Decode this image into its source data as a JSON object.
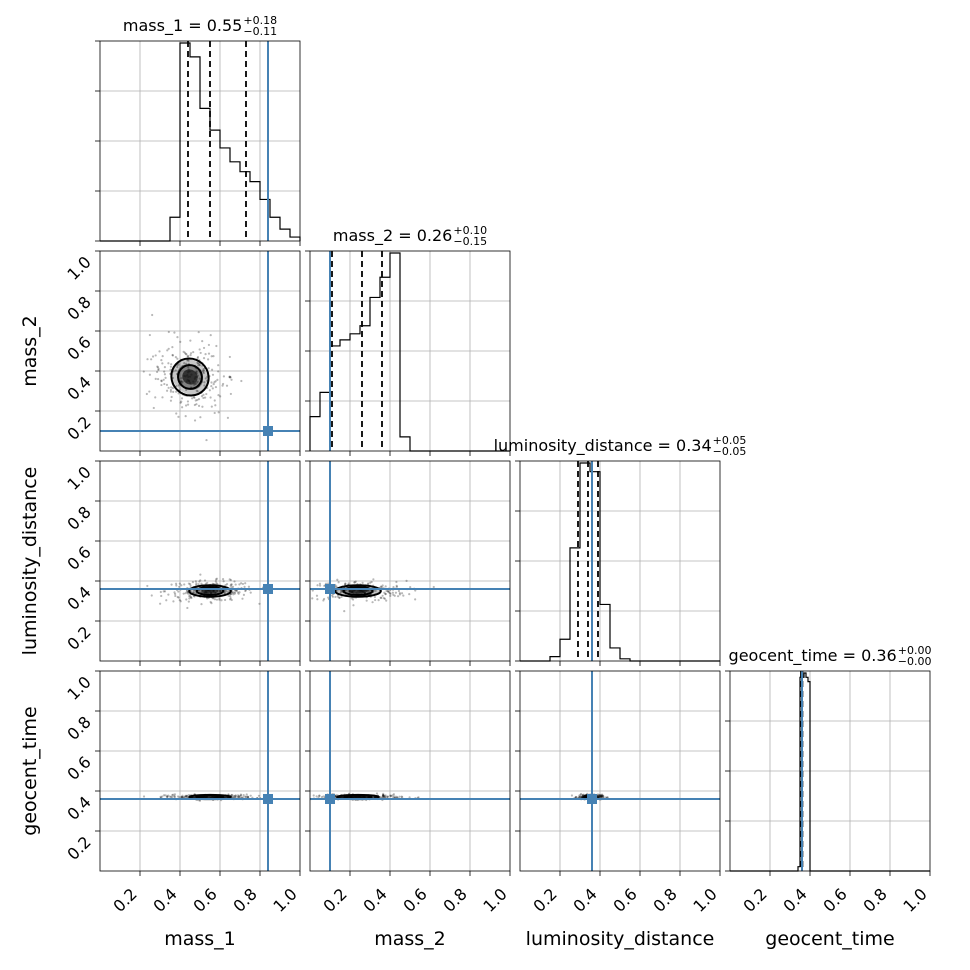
{
  "colors": {
    "truth": "#4682b4",
    "histogram": "#000000",
    "grid": "#b0b0b0"
  },
  "chart_data": {
    "type": "corner",
    "parameters": [
      "mass_1",
      "mass_2",
      "luminosity_distance",
      "geocent_time"
    ],
    "axis_labels": [
      "mass_1",
      "mass_2",
      "luminosity_distance",
      "geocent_time"
    ],
    "ranges": [
      [
        0,
        1
      ],
      [
        0,
        1
      ],
      [
        0,
        1
      ],
      [
        0,
        1
      ]
    ],
    "tick_labels": [
      "0.2",
      "0.4",
      "0.6",
      "0.8",
      "1.0"
    ],
    "ytick_labels": [
      "0.2",
      "0.4",
      "0.6",
      "0.8",
      "1.0"
    ],
    "grid": true,
    "titles": [
      {
        "param": "mass_1",
        "prefix": "mass_1 = ",
        "median": "0.55",
        "plus": "+0.18",
        "minus": "−0.11"
      },
      {
        "param": "mass_2",
        "prefix": "mass_2 = ",
        "median": "0.26",
        "plus": "+0.10",
        "minus": "−0.15"
      },
      {
        "param": "luminosity_distance",
        "prefix": "luminosity_distance = ",
        "median": "0.34",
        "plus": "+0.05",
        "minus": "−0.05"
      },
      {
        "param": "geocent_time",
        "prefix": "geocent_time = ",
        "median": "0.36",
        "plus": "+0.00",
        "minus": "−0.00"
      }
    ],
    "truths": [
      0.84,
      0.1,
      0.36,
      0.36
    ],
    "quantiles": [
      [
        0.44,
        0.55,
        0.73
      ],
      [
        0.11,
        0.26,
        0.36
      ],
      [
        0.29,
        0.34,
        0.39
      ],
      [
        0.355,
        0.36,
        0.362
      ]
    ],
    "histograms": [
      {
        "param": "mass_1",
        "edges": [
          0.35,
          0.4,
          0.45,
          0.5,
          0.55,
          0.6,
          0.65,
          0.7,
          0.75,
          0.8,
          0.85,
          0.9,
          0.95,
          1.0
        ],
        "counts": [
          0.12,
          1.0,
          0.93,
          0.67,
          0.56,
          0.47,
          0.4,
          0.35,
          0.3,
          0.21,
          0.12,
          0.06,
          0.02
        ]
      },
      {
        "param": "mass_2",
        "edges": [
          0.0,
          0.05,
          0.1,
          0.15,
          0.2,
          0.25,
          0.3,
          0.35,
          0.4,
          0.45,
          0.5
        ],
        "counts": [
          0.17,
          0.29,
          0.52,
          0.55,
          0.58,
          0.62,
          0.76,
          0.86,
          0.98,
          0.07
        ]
      },
      {
        "param": "luminosity_distance",
        "edges": [
          0.15,
          0.2,
          0.25,
          0.3,
          0.35,
          0.4,
          0.45,
          0.5,
          0.55
        ],
        "counts": [
          0.02,
          0.1,
          0.52,
          0.91,
          0.87,
          0.26,
          0.06,
          0.01
        ]
      },
      {
        "param": "geocent_time",
        "edges": [
          0.34,
          0.35,
          0.36,
          0.37,
          0.38,
          0.39,
          0.4
        ],
        "counts": [
          0.02,
          0.9,
          0.9,
          0.92,
          0.9,
          0.88
        ]
      }
    ],
    "pairs": [
      {
        "x": "mass_1",
        "y": "mass_2",
        "center": [
          0.45,
          0.37
        ],
        "spread": [
          0.2,
          0.18
        ],
        "angle_deg": -42
      },
      {
        "x": "mass_1",
        "y": "luminosity_distance",
        "center": [
          0.55,
          0.35
        ],
        "spread": [
          0.22,
          0.05
        ],
        "angle_deg": 0
      },
      {
        "x": "mass_2",
        "y": "luminosity_distance",
        "center": [
          0.24,
          0.35
        ],
        "spread": [
          0.24,
          0.05
        ],
        "angle_deg": 0
      },
      {
        "x": "mass_1",
        "y": "geocent_time",
        "center": [
          0.55,
          0.37
        ],
        "spread": [
          0.22,
          0.012
        ],
        "angle_deg": 0
      },
      {
        "x": "mass_2",
        "y": "geocent_time",
        "center": [
          0.24,
          0.37
        ],
        "spread": [
          0.22,
          0.012
        ],
        "angle_deg": 0
      },
      {
        "x": "luminosity_distance",
        "y": "geocent_time",
        "center": [
          0.35,
          0.37
        ],
        "spread": [
          0.06,
          0.012
        ],
        "angle_deg": 0
      }
    ]
  }
}
